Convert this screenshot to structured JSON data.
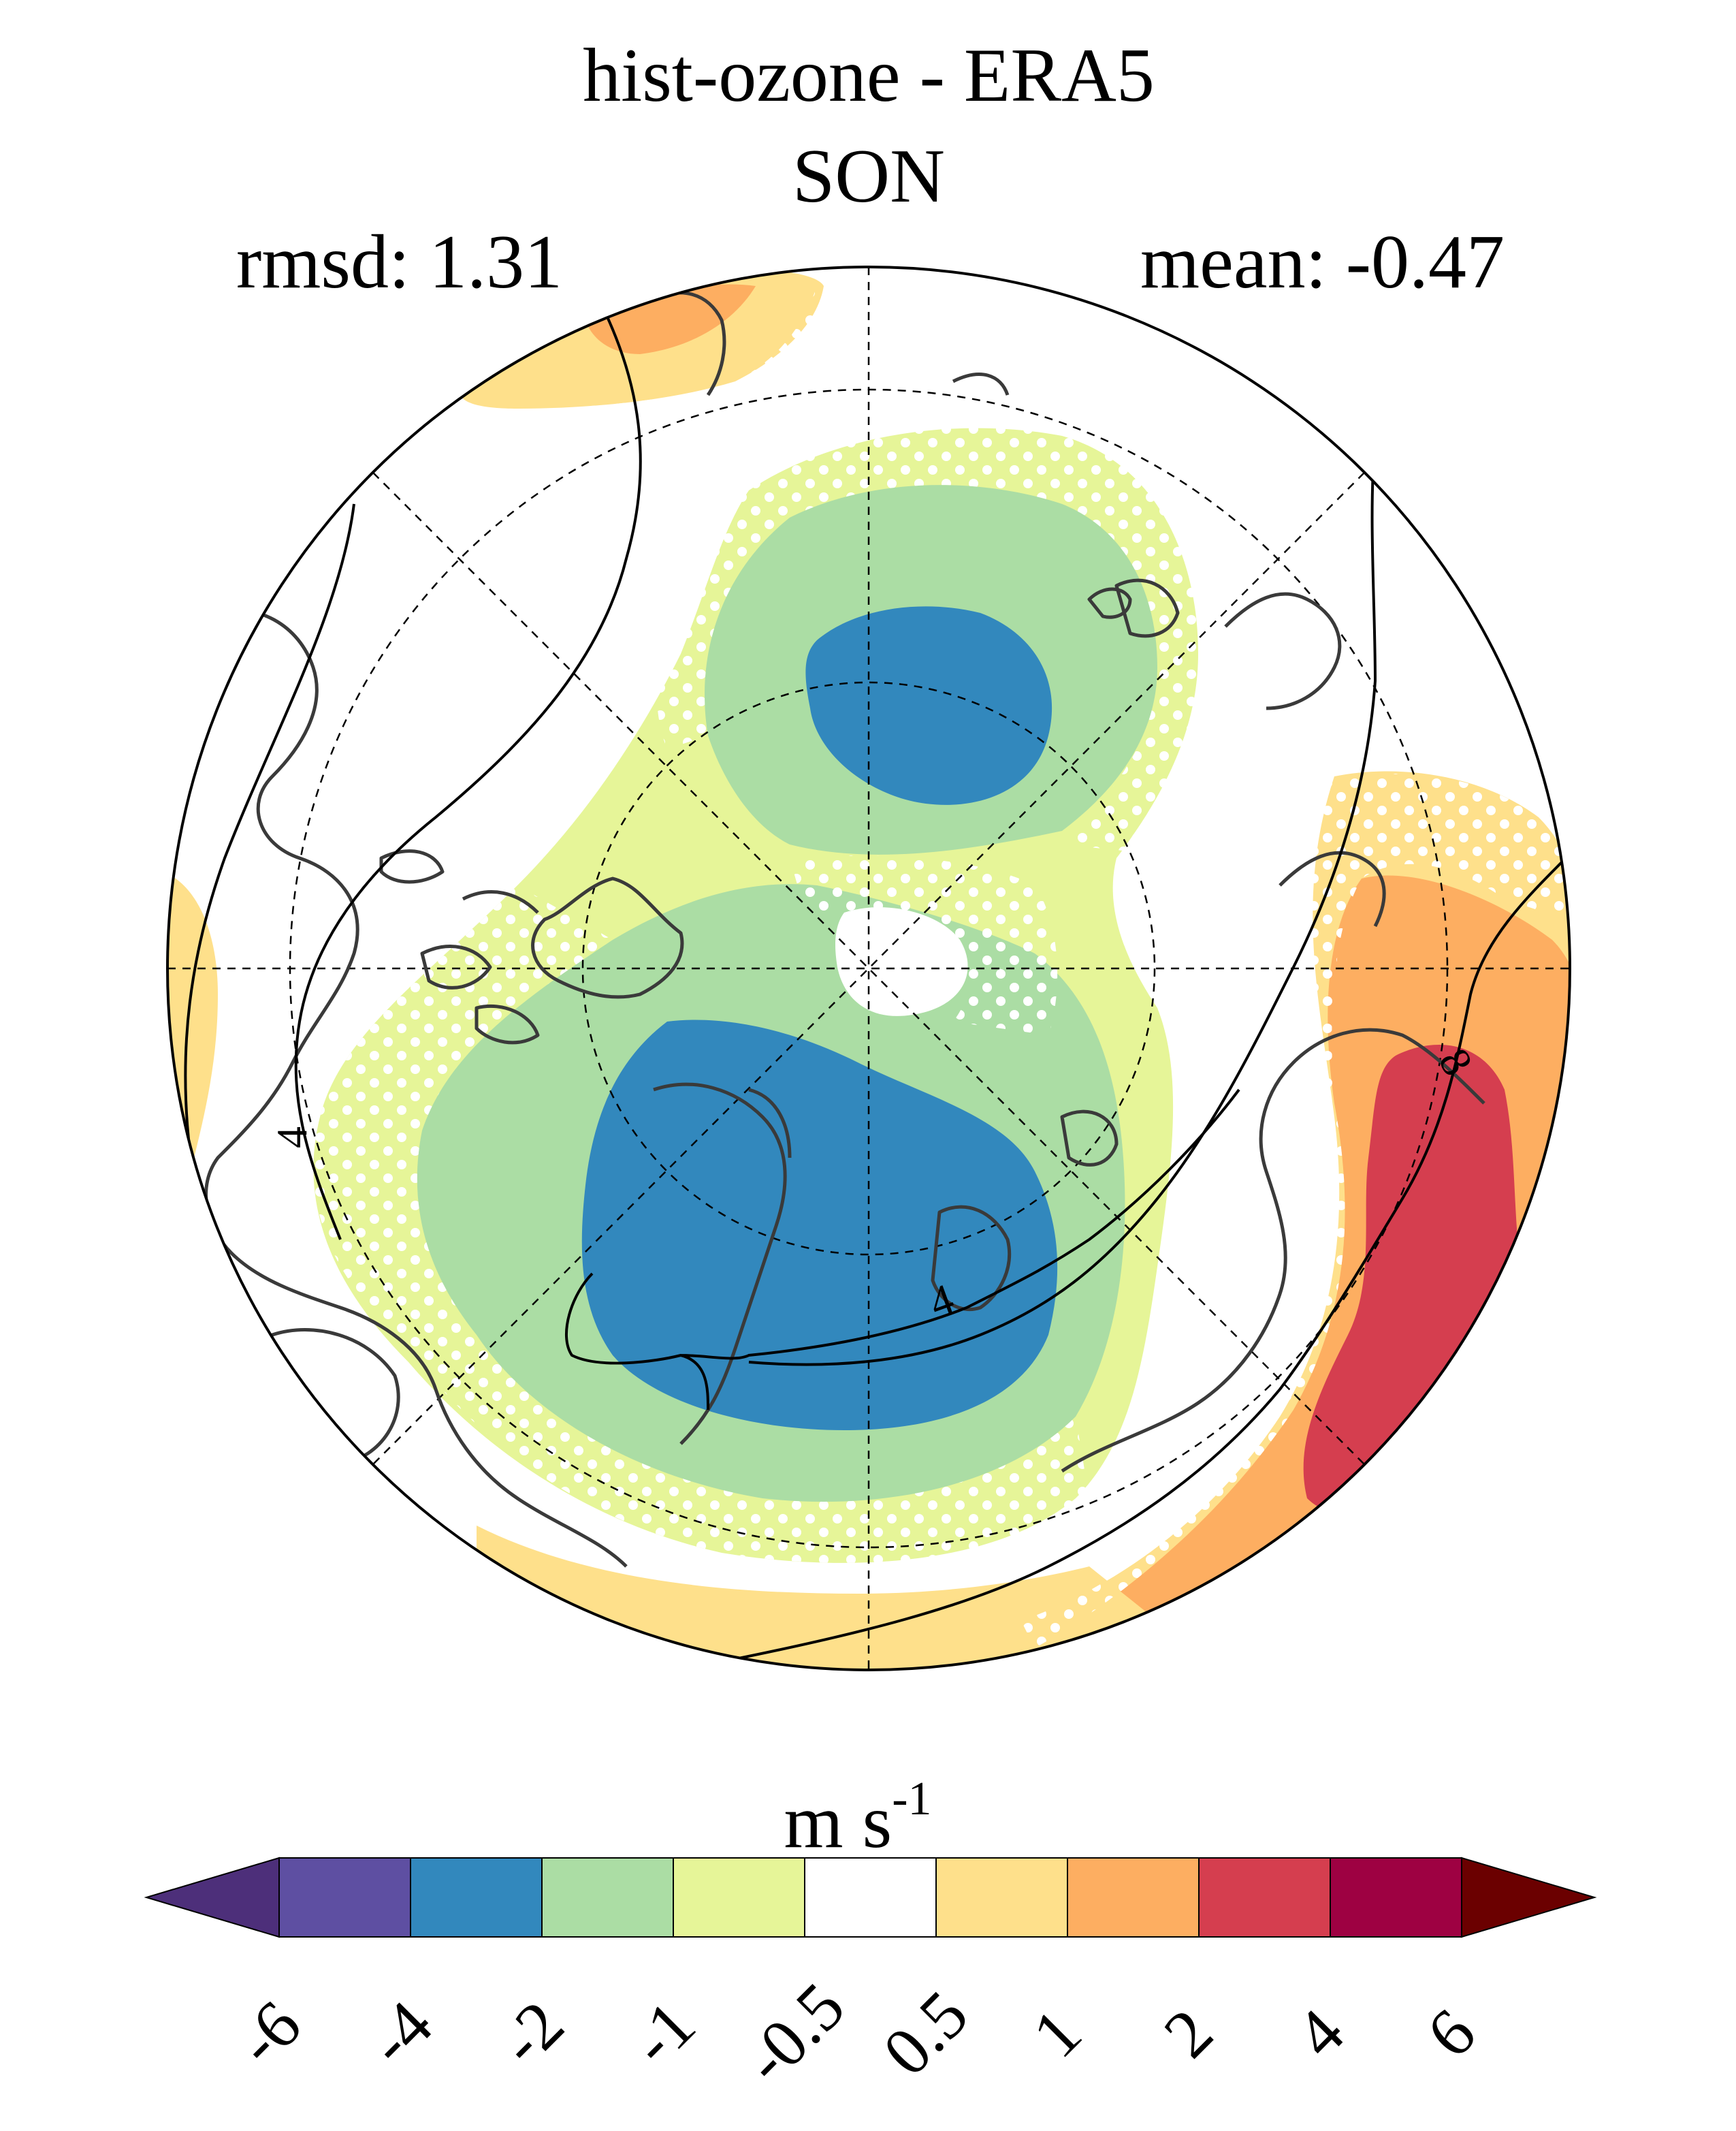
{
  "title": "hist-ozone - ERA5",
  "subtitle": "SON",
  "stats": {
    "rmsd_label": "rmsd: 1.31",
    "mean_label": "mean: -0.47"
  },
  "contour_labels": [
    "4",
    "4",
    "8"
  ],
  "colorbar": {
    "unit_base": "m s",
    "unit_exponent": "-1",
    "boundaries": [
      "-6",
      "-4",
      "-2",
      "-1",
      "-0.5",
      "0.5",
      "1",
      "2",
      "4",
      "6"
    ],
    "colors": [
      "#5e4fa2",
      "#3288bd",
      "#abdda4",
      "#e6f598",
      "#ffffff",
      "#fee08b",
      "#fdae61",
      "#d53e4f",
      "#9e0142"
    ],
    "under_color": "#4d2f7a",
    "over_color": "#6b0000"
  },
  "palette": {
    "dark_blue": "#3288bd",
    "light_green": "#abdda4",
    "pale_yellow_green": "#e6f598",
    "pale_orange": "#fee08b",
    "orange": "#fdae61",
    "red": "#d53e4f",
    "coast": "#3a3a3a"
  }
}
